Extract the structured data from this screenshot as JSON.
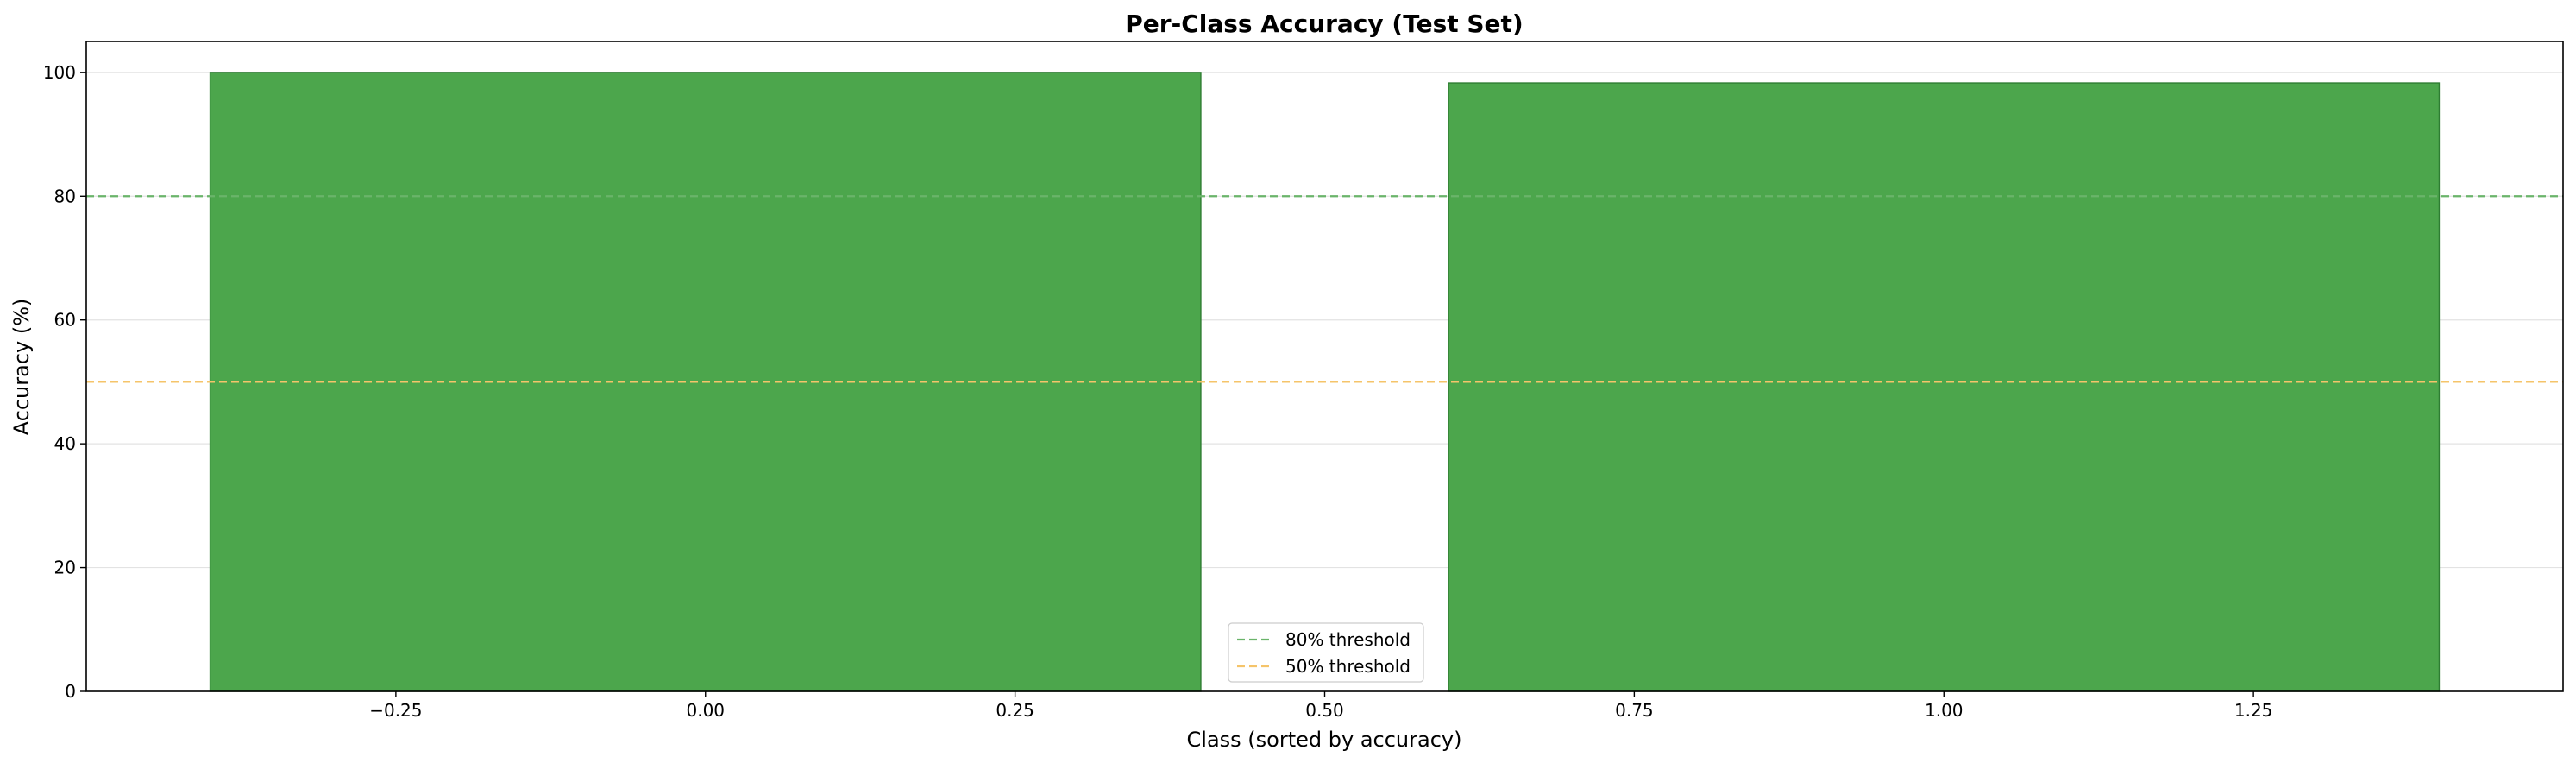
{
  "chart_data": {
    "type": "bar",
    "title": "Per-Class Accuracy (Test Set)",
    "xlabel": "Class (sorted by accuracy)",
    "ylabel": "Accuracy (%)",
    "x": [
      0,
      1
    ],
    "values": [
      100,
      98.3
    ],
    "bar_width": 0.8,
    "xlim": [
      -0.5,
      1.5
    ],
    "ylim": [
      0,
      105
    ],
    "xticks": [
      -0.25,
      0.0,
      0.25,
      0.5,
      0.75,
      1.0,
      1.25
    ],
    "xtick_labels": [
      "−0.25",
      "0.00",
      "0.25",
      "0.50",
      "0.75",
      "1.00",
      "1.25"
    ],
    "yticks": [
      0,
      20,
      40,
      60,
      80,
      100
    ],
    "ytick_labels": [
      "0",
      "20",
      "40",
      "60",
      "80",
      "100"
    ],
    "bar_color": "#4ca64c",
    "bar_edge_color": "#2e7d32",
    "grid": "y-axis, light",
    "thresholds": [
      {
        "label": "80% threshold",
        "value": 80,
        "color": "#6ab46a",
        "style": "dashed"
      },
      {
        "label": "50% threshold",
        "value": 50,
        "color": "#f5c46a",
        "style": "dashed"
      }
    ],
    "legend_position": "bottom-center"
  }
}
